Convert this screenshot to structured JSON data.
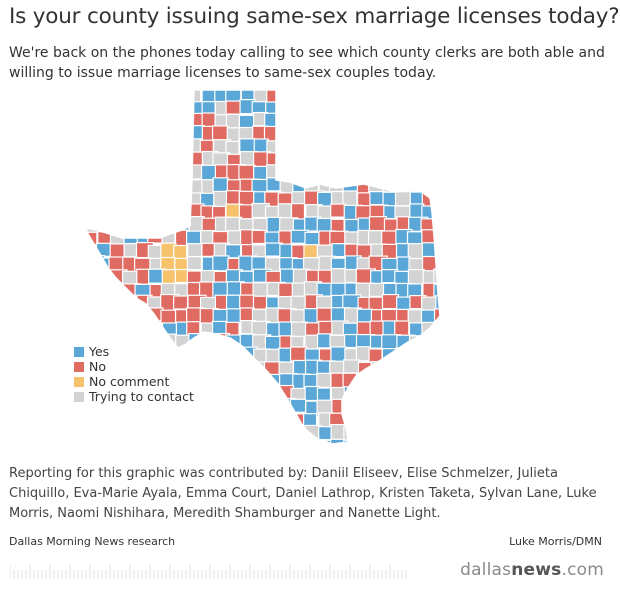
{
  "header": {
    "title": "Is your county issuing same-sex marriage licenses today?",
    "intro": "We're back on the phones today calling to see which county clerks are both able and willing to issue marriage licenses to same-sex couples today."
  },
  "colors": {
    "yes": "#5ba8d8",
    "no": "#e06b63",
    "no_comment": "#f6c26b",
    "trying": "#d3d3d3",
    "county_border": "#ffffff"
  },
  "legend": [
    {
      "key": "yes",
      "label": "Yes"
    },
    {
      "key": "no",
      "label": "No"
    },
    {
      "key": "no_comment",
      "label": "No comment"
    },
    {
      "key": "trying",
      "label": "Trying to contact"
    }
  ],
  "credits": "Reporting for this graphic was contributed by: Daniil Eliseev, Elise Schmelzer, Julieta Chiquillo, Eva-Marie Ayala, Emma Court, Daniel Lathrop, Kristen Taketa, Sylvan Lane, Luke Morris, Naomi Nishihara, Meredith Shamburger and Nanette Light.",
  "source": "Dallas Morning News research",
  "byline": "Luke Morris/DMN",
  "logo": {
    "part1": "dallas",
    "part2": "news",
    "part3": ".com"
  }
}
